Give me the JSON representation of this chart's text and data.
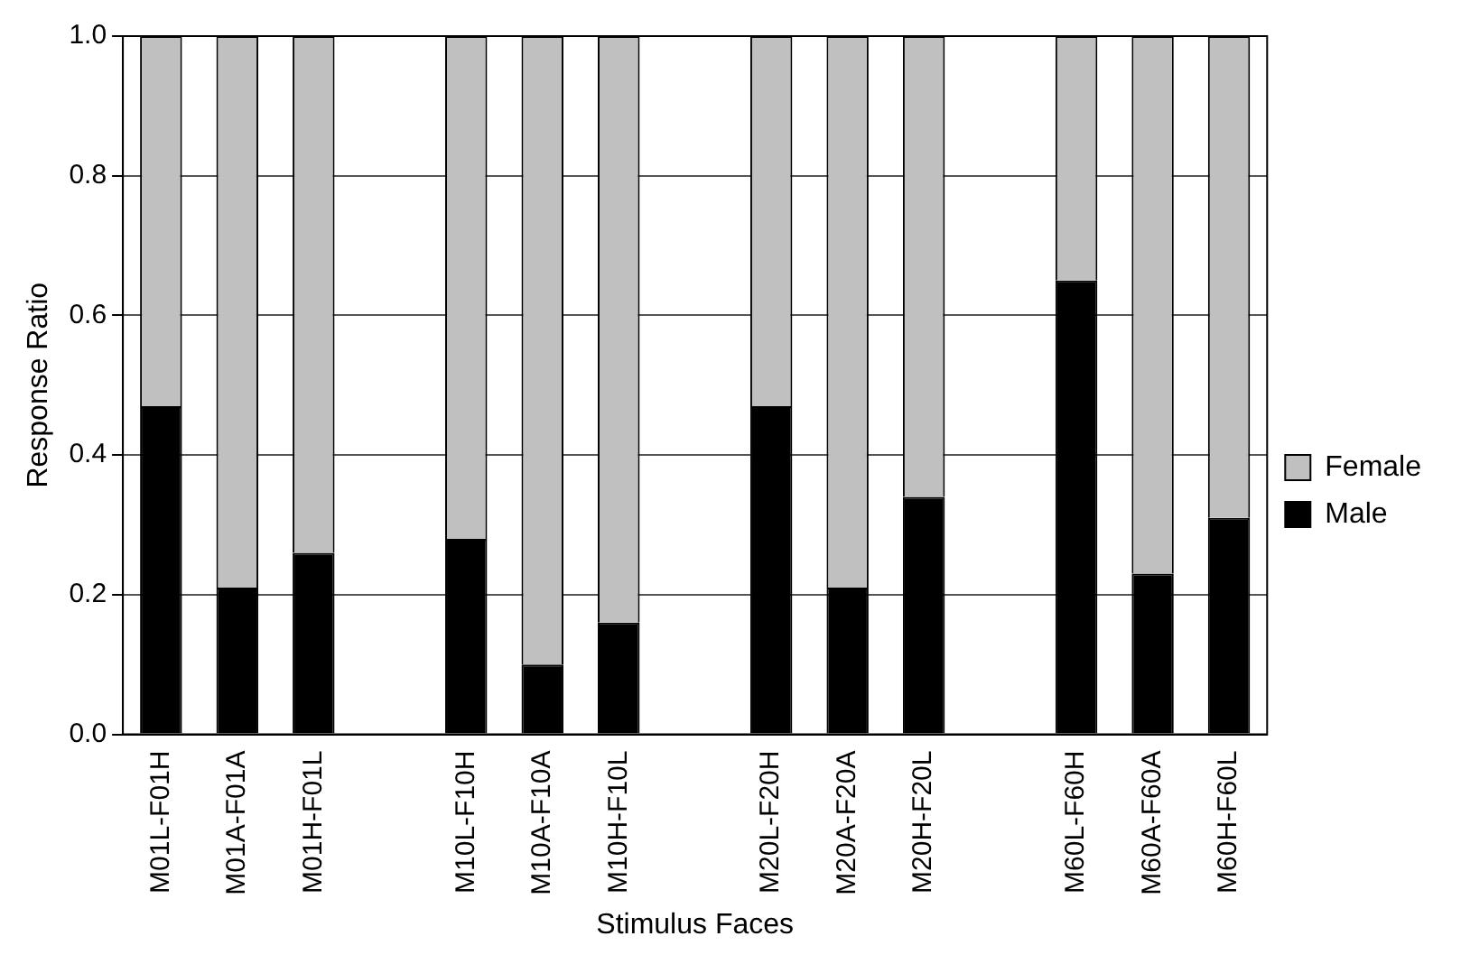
{
  "chart_data": {
    "type": "bar",
    "stacked": true,
    "xlabel": "Stimulus Faces",
    "ylabel": "Response Ratio",
    "categories": [
      "M01L-F01H",
      "M01A-F01A",
      "M01H-F01L",
      null,
      "M10L-F10H",
      "M10A-F10A",
      "M10H-F10L",
      null,
      "M20L-F20H",
      "M20A-F20A",
      "M20H-F20L",
      null,
      "M60L-F60H",
      "M60A-F60A",
      "M60H-F60L"
    ],
    "series": [
      {
        "name": "Male",
        "color": "#000000",
        "values": [
          0.47,
          0.21,
          0.26,
          null,
          0.28,
          0.1,
          0.16,
          null,
          0.47,
          0.21,
          0.34,
          null,
          0.65,
          0.23,
          0.31
        ]
      },
      {
        "name": "Female",
        "color": "#c0c0c0",
        "values": [
          0.53,
          0.79,
          0.74,
          null,
          0.72,
          0.9,
          0.84,
          null,
          0.53,
          0.79,
          0.66,
          null,
          0.35,
          0.77,
          0.69
        ]
      }
    ],
    "ylim": [
      0,
      1
    ],
    "yticks": [
      {
        "value": 0,
        "label": "0.0"
      },
      {
        "value": 0.2,
        "label": "0.2"
      },
      {
        "value": 0.4,
        "label": "0.4"
      },
      {
        "value": 0.6,
        "label": "0.6"
      },
      {
        "value": 0.8,
        "label": "0.8"
      },
      {
        "value": 1,
        "label": "1.0"
      }
    ],
    "grid": "y",
    "legend": "right"
  }
}
